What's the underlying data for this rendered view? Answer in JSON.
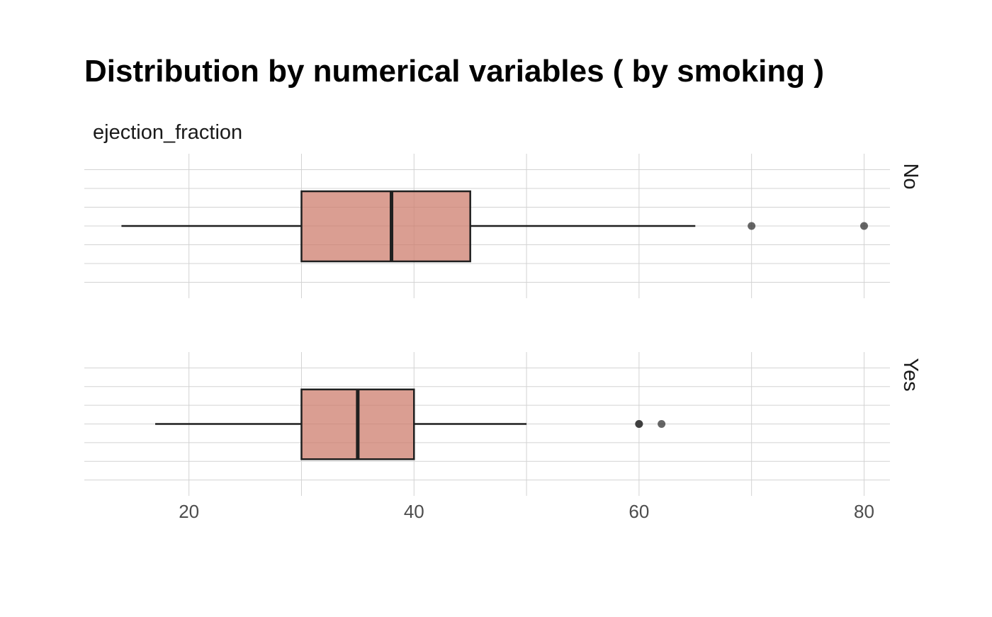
{
  "chart_data": {
    "type": "boxplot",
    "title": "Distribution by numerical variables ( by smoking )",
    "panel_label": "ejection_fraction",
    "orientation": "horizontal",
    "xlim": [
      10.7,
      82.3
    ],
    "x_ticks": [
      20,
      40,
      60,
      80
    ],
    "grid": true,
    "colors": {
      "box_fill": "#cd7e6d",
      "box_fill_opacity": 0.75,
      "box_stroke": "#1f1f1f",
      "outlier": "#333333",
      "grid": "#d3d3d3"
    },
    "facets": [
      {
        "label": "No",
        "min": 14,
        "q1": 30,
        "median": 38,
        "q3": 45,
        "max": 65,
        "outliers": [
          70,
          80
        ]
      },
      {
        "label": "Yes",
        "min": 17,
        "q1": 30,
        "median": 35,
        "q3": 40,
        "max": 50,
        "outliers": [
          60,
          60,
          62
        ]
      }
    ]
  }
}
